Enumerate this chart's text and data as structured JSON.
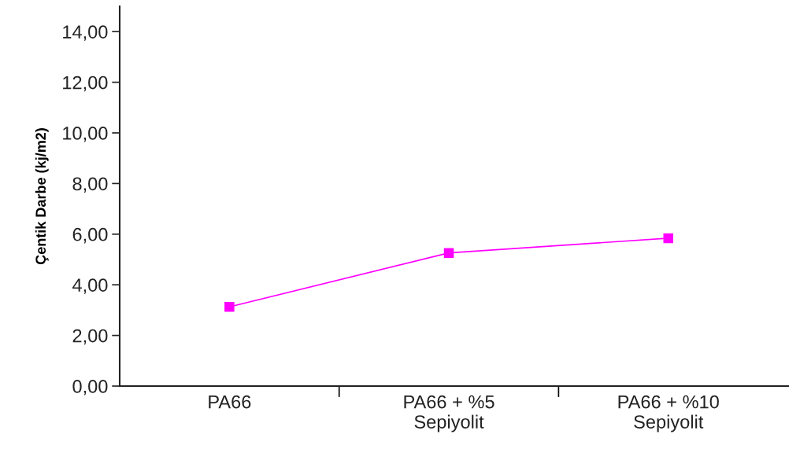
{
  "chart_data": {
    "type": "line",
    "ylabel": "Çentik Darbe (kj/m2)",
    "categories": [
      "PA66",
      "PA66 + %5\nSepiyolit",
      "PA66 + %10\nSepiyolit"
    ],
    "series": [
      {
        "color": "#ff00ff",
        "values": [
          3.13,
          5.26,
          5.84
        ]
      }
    ],
    "marker": "square",
    "line_style": "solid",
    "grid": false,
    "legend": false,
    "ylim": [
      0,
      15
    ],
    "yticks": [
      {
        "value": 0,
        "label": "0,00"
      },
      {
        "value": 2,
        "label": "2,00"
      },
      {
        "value": 4,
        "label": "4,00"
      },
      {
        "value": 6,
        "label": "6,00"
      },
      {
        "value": 8,
        "label": "8,00"
      },
      {
        "value": 10,
        "label": "10,00"
      },
      {
        "value": 12,
        "label": "12,00"
      },
      {
        "value": 14,
        "label": "14,00"
      }
    ]
  }
}
